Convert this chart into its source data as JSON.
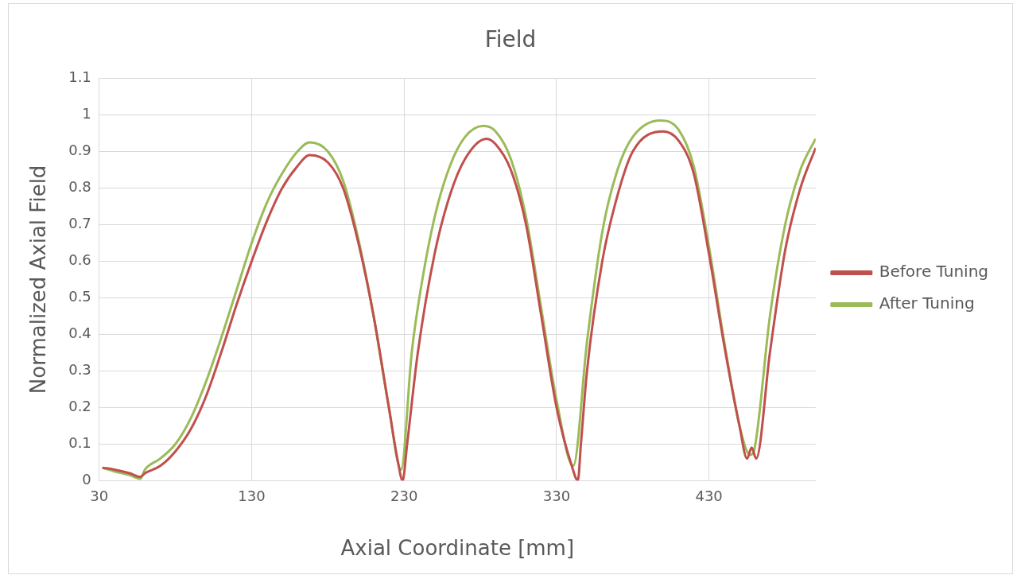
{
  "chart_data": {
    "type": "line",
    "title": "Field",
    "xlabel": "Axial Coordinate [mm]",
    "ylabel": "Normalized Axial Field",
    "xlim": [
      30,
      500
    ],
    "xticks": [
      30,
      130,
      230,
      330,
      430
    ],
    "ylim": [
      0,
      1.1
    ],
    "yticks": [
      0,
      0.1,
      0.2,
      0.3,
      0.4,
      0.5,
      0.6,
      0.7,
      0.8,
      0.9,
      1,
      1.1
    ],
    "grid": true,
    "legend": "right",
    "marker": "none",
    "line_style": "solid",
    "series": [
      {
        "name": "Before Tuning",
        "color": "#c0504d",
        "x": [
          32,
          40,
          50,
          57,
          60,
          70,
          80,
          90,
          100,
          110,
          120,
          130,
          140,
          150,
          160,
          168,
          180,
          190,
          200,
          210,
          220,
          226,
          229,
          232,
          239,
          250,
          260,
          270,
          284,
          290,
          300,
          310,
          320,
          330,
          340,
          344,
          346,
          350,
          360,
          370,
          380,
          400,
          410,
          420,
          430,
          440,
          450,
          455,
          458,
          461,
          470,
          480,
          490,
          500
        ],
        "values": [
          0.035,
          0.03,
          0.02,
          0.01,
          0.02,
          0.04,
          0.08,
          0.14,
          0.23,
          0.35,
          0.48,
          0.6,
          0.71,
          0.8,
          0.86,
          0.89,
          0.87,
          0.8,
          0.65,
          0.45,
          0.2,
          0.05,
          0,
          0.1,
          0.35,
          0.62,
          0.78,
          0.88,
          0.935,
          0.92,
          0.85,
          0.7,
          0.45,
          0.2,
          0.04,
          0,
          0.1,
          0.3,
          0.6,
          0.78,
          0.9,
          0.955,
          0.93,
          0.84,
          0.62,
          0.37,
          0.15,
          0.06,
          0.09,
          0.06,
          0.35,
          0.63,
          0.8,
          0.91
        ]
      },
      {
        "name": "After Tuning",
        "color": "#9bbb59",
        "x": [
          32,
          40,
          50,
          57,
          60,
          70,
          80,
          90,
          100,
          110,
          120,
          130,
          140,
          150,
          160,
          168,
          180,
          190,
          200,
          210,
          220,
          228,
          235,
          240,
          250,
          260,
          270,
          282,
          290,
          300,
          310,
          320,
          330,
          341,
          350,
          360,
          370,
          380,
          398,
          410,
          420,
          430,
          440,
          450,
          457,
          460,
          470,
          480,
          490,
          500
        ],
        "values": [
          0.035,
          0.025,
          0.015,
          0.005,
          0.03,
          0.06,
          0.1,
          0.17,
          0.27,
          0.39,
          0.52,
          0.65,
          0.76,
          0.84,
          0.9,
          0.925,
          0.9,
          0.82,
          0.66,
          0.45,
          0.2,
          0.03,
          0.35,
          0.5,
          0.72,
          0.86,
          0.94,
          0.97,
          0.955,
          0.88,
          0.72,
          0.47,
          0.22,
          0.04,
          0.38,
          0.68,
          0.85,
          0.94,
          0.985,
          0.96,
          0.86,
          0.64,
          0.38,
          0.15,
          0.07,
          0.09,
          0.45,
          0.7,
          0.85,
          0.935
        ]
      }
    ]
  }
}
